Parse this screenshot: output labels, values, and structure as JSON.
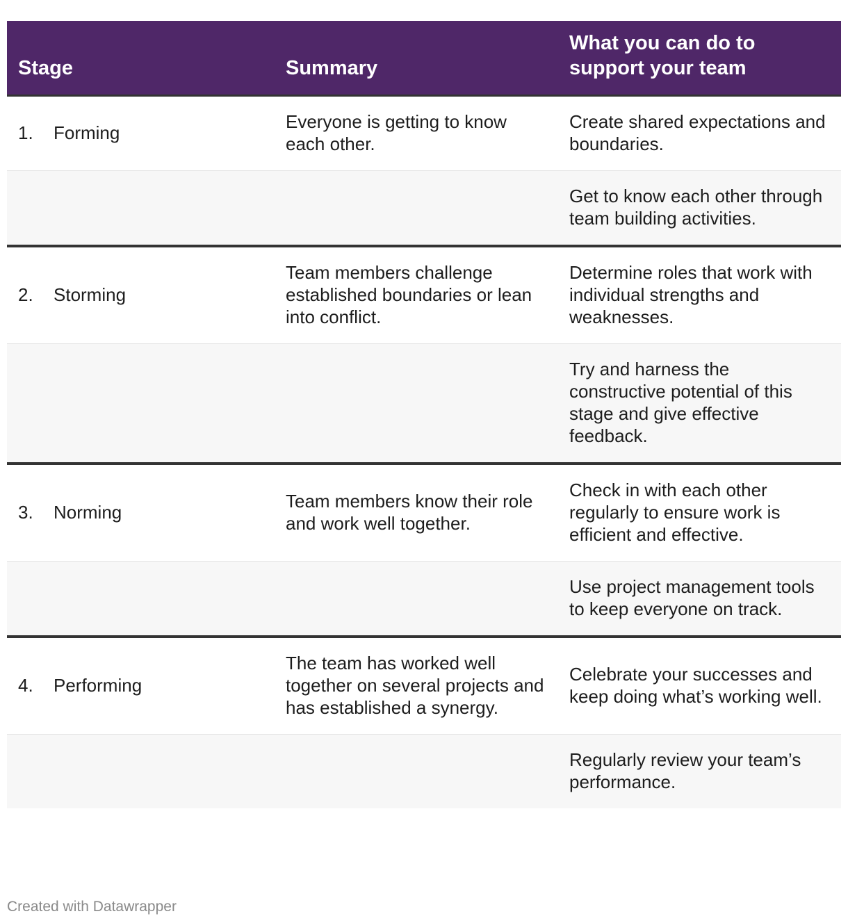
{
  "table": {
    "headers": {
      "stage": "Stage",
      "summary": "Summary",
      "support": "What you can do to support your team"
    },
    "stages": [
      {
        "number": "1.",
        "name": "Forming",
        "summary": "Everyone is getting to know each other.",
        "actions": [
          "Create shared expectations and boundaries.",
          "Get to know each other through team building activities."
        ]
      },
      {
        "number": "2.",
        "name": "Storming",
        "summary": "Team members challenge established boundaries or lean into conflict.",
        "actions": [
          "Determine roles that work with individual strengths and weaknesses.",
          "Try and harness the constructive potential of this stage and give effective feedback."
        ]
      },
      {
        "number": "3.",
        "name": "Norming",
        "summary": "Team members know their role and work well together.",
        "actions": [
          "Check in with each other regularly to ensure work is efficient and effective.",
          "Use project management tools to keep everyone on track."
        ]
      },
      {
        "number": "4.",
        "name": "Performing",
        "summary": "The team has worked well together on several projects and has established a synergy.",
        "actions": [
          "Celebrate your successes and keep doing what’s working well.",
          "Regularly review your team’s performance."
        ]
      }
    ]
  },
  "footer": {
    "credit": "Created with Datawrapper"
  },
  "colors": {
    "header_bg": "#4f2768",
    "header_text": "#ffffff",
    "alt_row_bg": "#f7f7f7",
    "group_divider": "#333333"
  }
}
